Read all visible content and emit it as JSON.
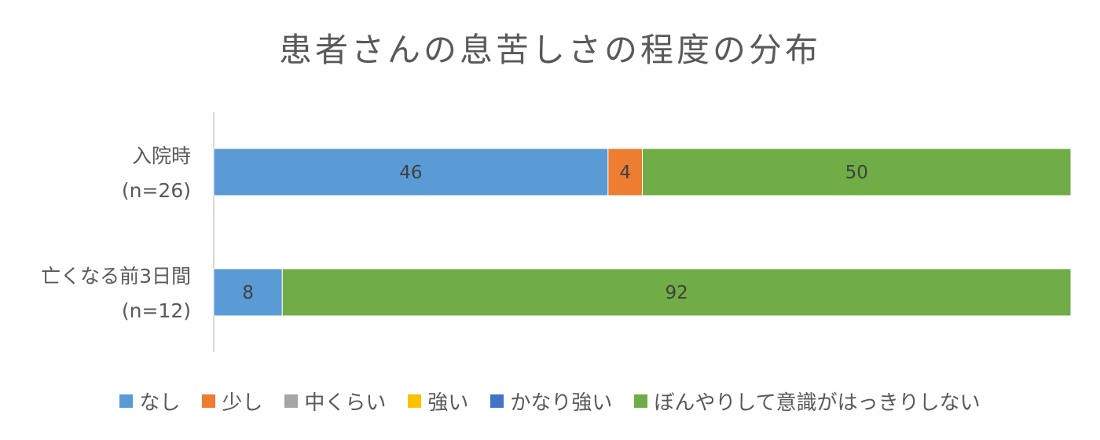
{
  "chart_data": {
    "type": "bar",
    "orientation": "horizontal",
    "stacked": "percent",
    "title": "患者さんの息苦しさの程度の分布",
    "categories": [
      {
        "line1": "入院時",
        "line2": "(n=26)"
      },
      {
        "line1": "亡くなる前3日間",
        "line2": "(n=12)"
      }
    ],
    "series": [
      {
        "name": "なし",
        "color": "#5B9BD5",
        "values": [
          46,
          8
        ]
      },
      {
        "name": "少し",
        "color": "#ED7D31",
        "values": [
          4,
          0
        ]
      },
      {
        "name": "中くらい",
        "color": "#A5A5A5",
        "values": [
          0,
          0
        ]
      },
      {
        "name": "強い",
        "color": "#FFC000",
        "values": [
          0,
          0
        ]
      },
      {
        "name": "かなり強い",
        "color": "#4472C4",
        "values": [
          0,
          0
        ]
      },
      {
        "name": "ぼんやりして意識がはっきりしない",
        "color": "#70AD47",
        "values": [
          50,
          92
        ]
      }
    ],
    "xlim": [
      0,
      100
    ],
    "grid": false,
    "legend_position": "bottom"
  }
}
